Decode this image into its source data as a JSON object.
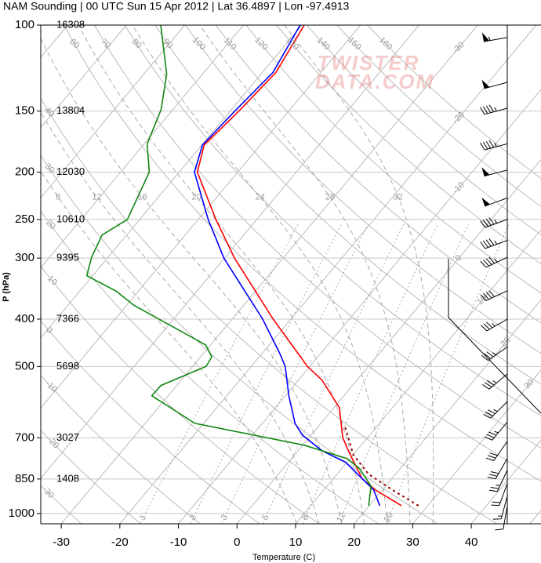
{
  "chart_data": {
    "type": "skewt",
    "title": "NAM Sounding | 00 UTC Sun 15 Apr 2012 | Lat 36.4897 | Lon -97.4913",
    "xlabel": "Temperature (C)",
    "ylabel": "P (hPa)",
    "watermark": [
      "TWISTER",
      "DATA.COM"
    ],
    "xlim": [
      -33.5,
      51.9
    ],
    "xticks": [
      -30,
      -20,
      -10,
      0,
      10,
      20,
      30,
      40
    ],
    "ylim": [
      1050,
      100
    ],
    "yticks": [
      100,
      150,
      200,
      250,
      300,
      400,
      500,
      700,
      850,
      1000
    ],
    "log_y": true,
    "grid": true,
    "heights": {
      "p": [
        100,
        150,
        200,
        250,
        300,
        400,
        500,
        700,
        850
      ],
      "values": [
        16308,
        13804,
        12030,
        10610,
        9395,
        7366,
        5698,
        3027,
        1408
      ]
    },
    "series": [
      {
        "color": "#ff0000",
        "style": "solid",
        "p": [
          964,
          895,
          850,
          744,
          700,
          607,
          533,
          500,
          400,
          300,
          250,
          200,
          176,
          150,
          125,
          100
        ],
        "values": [
          25.5,
          18.8,
          15.0,
          8.6,
          5.8,
          0.9,
          -6.0,
          -10.4,
          -23.0,
          -38.3,
          -47.0,
          -56.9,
          -59.6,
          -58.5,
          -57.7,
          -59.6
        ]
      },
      {
        "color": "#0000ff",
        "style": "solid",
        "p": [
          964,
          895,
          786,
          744,
          691,
          654,
          574,
          500,
          469,
          400,
          300,
          250,
          200,
          176,
          150,
          125,
          100
        ],
        "values": [
          21.8,
          18.5,
          9.8,
          4.1,
          -1.5,
          -4.4,
          -9.4,
          -14.2,
          -17.1,
          -24.8,
          -40.1,
          -48.3,
          -57.4,
          -59.9,
          -59.2,
          -58.2,
          -60.3
        ]
      },
      {
        "color": "#118811",
        "style": "solid",
        "p": [
          964,
          879,
          810,
          772,
          725,
          654,
          574,
          547,
          500,
          478,
          452,
          375,
          351,
          326,
          299,
          269,
          250,
          200,
          175,
          149,
          126,
          100
        ],
        "values": [
          19.9,
          17.5,
          13.1,
          9.5,
          0.3,
          -21.5,
          -32.8,
          -32.7,
          -27.7,
          -28.1,
          -30.8,
          -48.7,
          -53.7,
          -61.0,
          -62.8,
          -64.2,
          -62.1,
          -65.1,
          -69.5,
          -72.0,
          -76.1,
          -84.1
        ]
      },
      {
        "color": "#990000",
        "style": "dotted",
        "p": [
          964,
          895,
          831,
          758,
          666
        ],
        "values": [
          28.4,
          21.7,
          15.4,
          10.0,
          4.7
        ]
      }
    ],
    "isotherms": [
      -30,
      -20,
      -10,
      0,
      10,
      20,
      30
    ],
    "dry_adiabats": [
      -30,
      -20,
      -10,
      0,
      10,
      20,
      30,
      40,
      60,
      70,
      80,
      90,
      100,
      110,
      120,
      130,
      140,
      150,
      160
    ],
    "moist_adiabats": [
      8,
      12,
      16,
      20,
      24,
      28,
      32
    ],
    "mixing_ratios": [
      1,
      2,
      3,
      5,
      8,
      12,
      20
    ],
    "winds": {
      "p": [
        106,
        131,
        148,
        175,
        198,
        226,
        250,
        276,
        299,
        350,
        400,
        456,
        518,
        590,
        650,
        712,
        772,
        815,
        868,
        922,
        965
      ],
      "direction": [
        260,
        255,
        255,
        255,
        255,
        250,
        250,
        250,
        245,
        245,
        240,
        235,
        230,
        225,
        220,
        215,
        210,
        205,
        200,
        195,
        190
      ],
      "speed": [
        55,
        50,
        45,
        45,
        50,
        50,
        45,
        45,
        45,
        40,
        35,
        35,
        35,
        35,
        35,
        30,
        30,
        25,
        20,
        15,
        10
      ]
    }
  }
}
